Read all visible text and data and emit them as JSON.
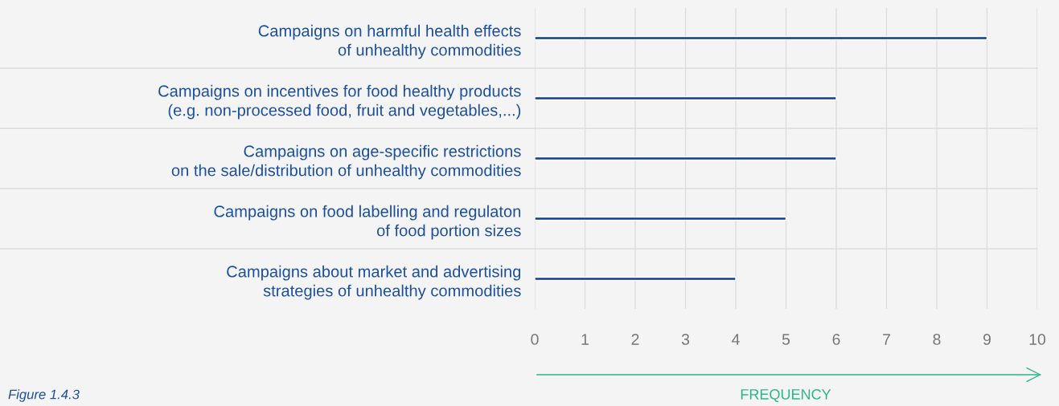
{
  "chart_data": {
    "type": "bar",
    "orientation": "horizontal",
    "categories": [
      "Campaigns on harmful health effects\nof unhealthy commodities",
      "Campaigns on incentives for food healthy products\n(e.g. non-processed food, fruit and vegetables,...)",
      "Campaigns on age-specific restrictions\non the sale/distribution of unhealthy commodities",
      "Campaigns on food labelling and regulaton\nof food portion sizes",
      "Campaigns about market and advertising\nstrategies of unhealthy commodities"
    ],
    "values": [
      9,
      6,
      6,
      5,
      4
    ],
    "color": "#0e3f8c",
    "xlim": [
      0,
      10
    ],
    "xticks": [
      0,
      1,
      2,
      3,
      4,
      5,
      6,
      7,
      8,
      9,
      10
    ],
    "xlabel": "FREQUENCY",
    "grid": "x",
    "annotations": [
      "Figure 1.4.3"
    ]
  }
}
